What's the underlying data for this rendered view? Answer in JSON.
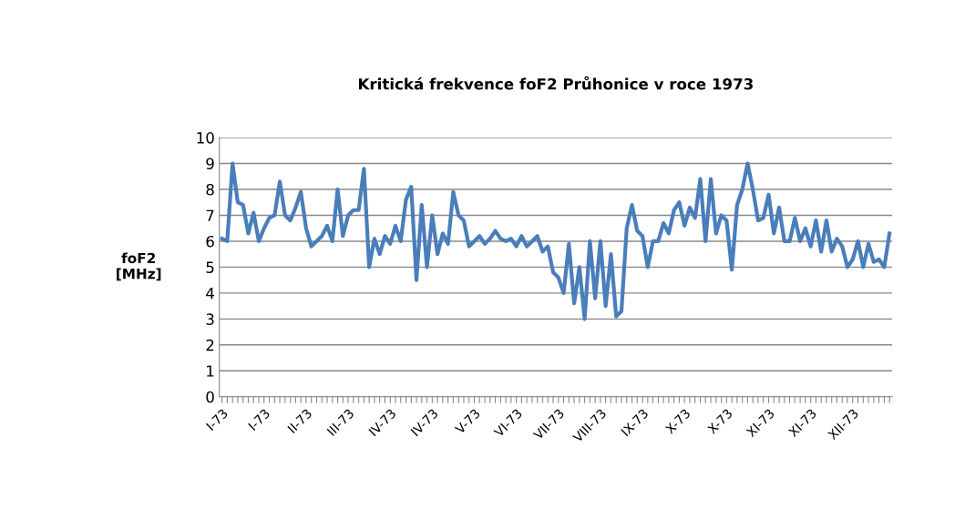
{
  "chart_data": {
    "type": "line",
    "title": "Kritická frekvence foF2 Průhonice v roce 1973",
    "ylabel": "foF2\n[MHz]",
    "categories": [
      "I-73",
      null,
      null,
      null,
      null,
      null,
      null,
      null,
      "I-73",
      null,
      null,
      null,
      null,
      null,
      null,
      null,
      "II-73",
      null,
      null,
      null,
      null,
      null,
      null,
      null,
      "III-73",
      null,
      null,
      null,
      null,
      null,
      null,
      null,
      "IV-73",
      null,
      null,
      null,
      null,
      null,
      null,
      null,
      "IV-73",
      null,
      null,
      null,
      null,
      null,
      null,
      null,
      "V-73",
      null,
      null,
      null,
      null,
      null,
      null,
      null,
      "VI-73",
      null,
      null,
      null,
      null,
      null,
      null,
      null,
      "VII-73",
      null,
      null,
      null,
      null,
      null,
      null,
      null,
      "VIII-73",
      null,
      null,
      null,
      null,
      null,
      null,
      null,
      "IX-73",
      null,
      null,
      null,
      null,
      null,
      null,
      null,
      "X-73",
      null,
      null,
      null,
      null,
      null,
      null,
      null,
      "X-73",
      null,
      null,
      null,
      null,
      null,
      null,
      null,
      "XI-73",
      null,
      null,
      null,
      null,
      null,
      null,
      null,
      "XI-73",
      null,
      null,
      null,
      null,
      null,
      null,
      null,
      "XII-73",
      null,
      null,
      null,
      null,
      null,
      null,
      null
    ],
    "series": [
      {
        "color": "#4a7ebb",
        "values": [
          6.1,
          6.0,
          9.0,
          7.5,
          7.4,
          6.3,
          7.1,
          6.0,
          6.5,
          6.9,
          7.0,
          8.3,
          7.0,
          6.8,
          7.3,
          7.9,
          6.5,
          5.8,
          6.0,
          6.2,
          6.6,
          6.0,
          8.0,
          6.2,
          7.0,
          7.2,
          7.2,
          8.8,
          5.0,
          6.1,
          5.5,
          6.2,
          5.9,
          6.6,
          6.0,
          7.6,
          8.1,
          4.5,
          7.4,
          5.0,
          7.0,
          5.5,
          6.3,
          5.9,
          7.9,
          7.0,
          6.8,
          5.8,
          6.0,
          6.2,
          5.9,
          6.1,
          6.4,
          6.1,
          6.0,
          6.1,
          5.8,
          6.2,
          5.8,
          6.0,
          6.2,
          5.6,
          5.8,
          4.8,
          4.6,
          4.0,
          5.9,
          3.6,
          5.0,
          3.0,
          6.0,
          3.8,
          6.0,
          3.5,
          5.5,
          3.1,
          3.3,
          6.5,
          7.4,
          6.4,
          6.2,
          5.0,
          6.0,
          6.0,
          6.7,
          6.3,
          7.2,
          7.5,
          6.6,
          7.3,
          6.9,
          8.4,
          6.0,
          8.4,
          6.3,
          7.0,
          6.8,
          4.9,
          7.4,
          8.0,
          9.0,
          8.0,
          6.8,
          6.9,
          7.8,
          6.3,
          7.3,
          6.0,
          6.0,
          6.9,
          6.0,
          6.5,
          5.8,
          6.8,
          5.6,
          6.8,
          5.6,
          6.1,
          5.8,
          5.0,
          5.3,
          6.0,
          5.0,
          5.9,
          5.2,
          5.3,
          5.0,
          6.3
        ]
      }
    ],
    "ylim": [
      0,
      10
    ],
    "yticks": [
      0,
      1,
      2,
      3,
      4,
      5,
      6,
      7,
      8,
      9,
      10
    ],
    "grid": "y",
    "legend": false,
    "marker": "none",
    "line_style": "solid"
  }
}
